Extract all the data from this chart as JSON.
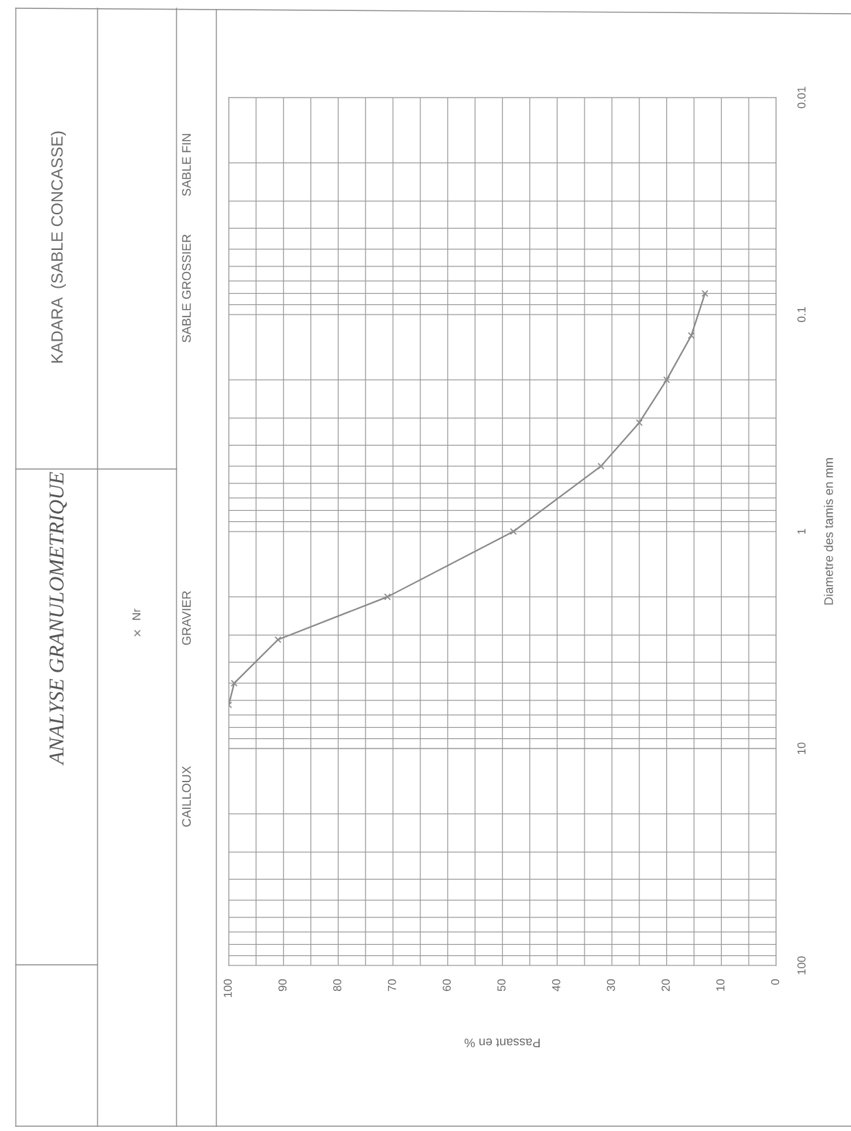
{
  "chart_data": {
    "type": "line",
    "title": "ANALYSE GRANULOMETRIQUE",
    "subtitle": "KADARA  (SABLE CONCASSE)",
    "xlabel": "Passant en %",
    "ylabel": "Diametre des tamis en mm",
    "annotations": [
      "SABLE FIN",
      "SABLE GROSSIER",
      "GRAVIER",
      "CAILLOUX"
    ],
    "log": "y",
    "x": [
      13,
      15.5,
      20,
      25,
      32,
      48,
      71,
      91,
      99,
      100
    ],
    "series": [
      {
        "name": "Nr",
        "color": "#8a8a8a",
        "values": [
          0.08,
          0.125,
          0.2,
          0.315,
          0.5,
          1,
          2,
          3.15,
          5,
          6.3
        ]
      }
    ],
    "marker": "cross",
    "line_style": "solid",
    "legend": "left",
    "grid": true,
    "ylim": [
      100,
      0.01
    ],
    "xlim": [
      100,
      0
    ],
    "yticks": [
      100,
      {
        "value": 90,
        "label": null
      },
      {
        "value": 80,
        "label": null
      },
      {
        "value": 70,
        "label": null
      },
      {
        "value": 60,
        "label": null
      },
      {
        "value": 50,
        "label": null
      },
      {
        "value": 40,
        "label": null
      },
      {
        "value": 30,
        "label": null
      },
      {
        "value": 20,
        "label": null
      },
      10,
      {
        "value": 9,
        "label": null
      },
      {
        "value": 8,
        "label": null
      },
      {
        "value": 7,
        "label": null
      },
      {
        "value": 6,
        "label": null
      },
      {
        "value": 5,
        "label": null
      },
      {
        "value": 4,
        "label": null
      },
      {
        "value": 3,
        "label": null
      },
      {
        "value": 2,
        "label": null
      },
      1,
      {
        "value": 0.9,
        "label": null
      },
      {
        "value": 0.8,
        "label": null
      },
      {
        "value": 0.7,
        "label": null
      },
      {
        "value": 0.6,
        "label": null
      },
      {
        "value": 0.5,
        "label": null
      },
      {
        "value": 0.4,
        "label": null
      },
      {
        "value": 0.3,
        "label": null
      },
      {
        "value": 0.2,
        "label": null
      },
      0.1,
      {
        "value": 0.09,
        "label": null
      },
      {
        "value": 0.08,
        "label": null
      },
      {
        "value": 0.07,
        "label": null
      },
      {
        "value": 0.06,
        "label": null
      },
      {
        "value": 0.05,
        "label": null
      },
      {
        "value": 0.04,
        "label": null
      },
      {
        "value": 0.03,
        "label": null
      },
      {
        "value": 0.02,
        "label": null
      },
      0.01
    ],
    "xticks": [
      100,
      {
        "value": 95,
        "label": null
      },
      90,
      {
        "value": 85,
        "label": null
      },
      80,
      {
        "value": 75,
        "label": null
      },
      70,
      {
        "value": 65,
        "label": null
      },
      60,
      {
        "value": 55,
        "label": null
      },
      50,
      {
        "value": 45,
        "label": null
      },
      40,
      {
        "value": 35,
        "label": null
      },
      30,
      {
        "value": 25,
        "label": null
      },
      20,
      {
        "value": 15,
        "label": null
      },
      10,
      {
        "value": 5,
        "label": null
      },
      0
    ]
  }
}
